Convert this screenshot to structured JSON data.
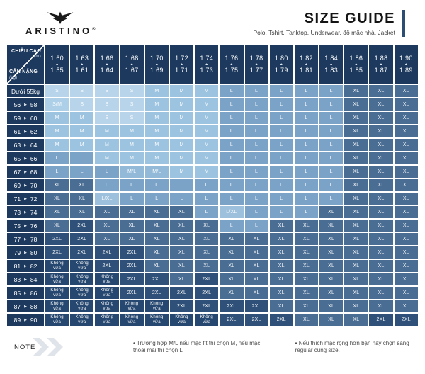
{
  "logo": {
    "brand": "ARISTINO",
    "reg": "®"
  },
  "header": {
    "title": "SIZE GUIDE",
    "subtitle": "Polo, Tshirt, Tanktop, Underwear, đồ mặc nhà, Jacket"
  },
  "chart_data": {
    "type": "table",
    "corner": {
      "top_label": "CHIỀU CAO",
      "top_unit": "(m)",
      "bottom_label": "CÂN NẶNG",
      "bottom_unit": "(kg)"
    },
    "col_arrow": "▲",
    "row_arrow": "▶",
    "no_fit_label": "Không vừa",
    "header_bg": "#1d3a5e",
    "size_colors": {
      "S": "#b7d4ea",
      "S/M": "#add0e8",
      "M": "#9cc3e0",
      "M/L": "#92b9d8",
      "L": "#7aa3c7",
      "L/XL": "#9dc0dc",
      "XL": "#4a6d94",
      "2XL": "#2f5179",
      "Không vừa": "#26476f"
    },
    "columns": [
      {
        "max": "1.60",
        "min": "1.55"
      },
      {
        "max": "1.63",
        "min": "1.61"
      },
      {
        "max": "1.66",
        "min": "1.64"
      },
      {
        "max": "1.68",
        "min": "1.67"
      },
      {
        "max": "1.70",
        "min": "1.69"
      },
      {
        "max": "1.72",
        "min": "1.71"
      },
      {
        "max": "1.74",
        "min": "1.73"
      },
      {
        "max": "1.76",
        "min": "1.75"
      },
      {
        "max": "1.78",
        "min": "1.77"
      },
      {
        "max": "1.80",
        "min": "1.79"
      },
      {
        "max": "1.82",
        "min": "1.81"
      },
      {
        "max": "1.84",
        "min": "1.83"
      },
      {
        "max": "1.86",
        "min": "1.85"
      },
      {
        "max": "1.88",
        "min": "1.87"
      },
      {
        "max": "1.90",
        "min": "1.89"
      }
    ],
    "rows": [
      {
        "label": "Dưới 55kg",
        "sizes": [
          "S",
          "S",
          "S",
          "S",
          "M",
          "M",
          "M",
          "L",
          "L",
          "L",
          "L",
          "L",
          "XL",
          "XL",
          "XL"
        ]
      },
      {
        "from": "56",
        "to": "58",
        "sizes": [
          "S/M",
          "S",
          "S",
          "S",
          "M",
          "M",
          "M",
          "L",
          "L",
          "L",
          "L",
          "L",
          "XL",
          "XL",
          "XL"
        ]
      },
      {
        "from": "59",
        "to": "60",
        "sizes": [
          "M",
          "M",
          "S",
          "S",
          "M",
          "M",
          "M",
          "L",
          "L",
          "L",
          "L",
          "L",
          "XL",
          "XL",
          "XL"
        ]
      },
      {
        "from": "61",
        "to": "62",
        "sizes": [
          "M",
          "M",
          "M",
          "M",
          "M",
          "M",
          "M",
          "L",
          "L",
          "L",
          "L",
          "L",
          "XL",
          "XL",
          "XL"
        ]
      },
      {
        "from": "63",
        "to": "64",
        "sizes": [
          "M",
          "M",
          "M",
          "M",
          "M",
          "M",
          "M",
          "L",
          "L",
          "L",
          "L",
          "L",
          "XL",
          "XL",
          "XL"
        ]
      },
      {
        "from": "65",
        "to": "66",
        "sizes": [
          "L",
          "L",
          "M",
          "M",
          "M",
          "M",
          "M",
          "L",
          "L",
          "L",
          "L",
          "L",
          "XL",
          "XL",
          "XL"
        ]
      },
      {
        "from": "67",
        "to": "68",
        "sizes": [
          "L",
          "L",
          "L",
          "M/L",
          "M/L",
          "M",
          "M",
          "L",
          "L",
          "L",
          "L",
          "L",
          "XL",
          "XL",
          "XL"
        ]
      },
      {
        "from": "69",
        "to": "70",
        "sizes": [
          "XL",
          "XL",
          "L",
          "L",
          "L",
          "L",
          "L",
          "L",
          "L",
          "L",
          "L",
          "L",
          "XL",
          "XL",
          "XL"
        ]
      },
      {
        "from": "71",
        "to": "72",
        "sizes": [
          "XL",
          "XL",
          "L/XL",
          "L",
          "L",
          "L",
          "L",
          "L",
          "L",
          "L",
          "L",
          "L",
          "XL",
          "XL",
          "XL"
        ]
      },
      {
        "from": "73",
        "to": "74",
        "sizes": [
          "XL",
          "XL",
          "XL",
          "XL",
          "XL",
          "XL",
          "L",
          "L/XL",
          "L",
          "L",
          "L",
          "XL",
          "XL",
          "XL",
          "XL"
        ]
      },
      {
        "from": "75",
        "to": "76",
        "sizes": [
          "XL",
          "2XL",
          "XL",
          "XL",
          "XL",
          "XL",
          "XL",
          "L",
          "L",
          "XL",
          "XL",
          "XL",
          "XL",
          "XL",
          "XL"
        ]
      },
      {
        "from": "77",
        "to": "78",
        "sizes": [
          "2XL",
          "2XL",
          "XL",
          "XL",
          "XL",
          "XL",
          "XL",
          "XL",
          "XL",
          "XL",
          "XL",
          "XL",
          "XL",
          "XL",
          "XL"
        ]
      },
      {
        "from": "79",
        "to": "80",
        "sizes": [
          "2XL",
          "2XL",
          "2XL",
          "2XL",
          "XL",
          "XL",
          "XL",
          "XL",
          "XL",
          "XL",
          "XL",
          "XL",
          "XL",
          "XL",
          "XL"
        ]
      },
      {
        "from": "81",
        "to": "82",
        "sizes": [
          "Không vừa",
          "Không vừa",
          "2XL",
          "2XL",
          "XL",
          "XL",
          "XL",
          "XL",
          "XL",
          "XL",
          "XL",
          "XL",
          "XL",
          "XL",
          "XL"
        ]
      },
      {
        "from": "83",
        "to": "84",
        "sizes": [
          "Không vừa",
          "Không vừa",
          "Không vừa",
          "2XL",
          "2XL",
          "XL",
          "2XL",
          "XL",
          "XL",
          "XL",
          "XL",
          "XL",
          "XL",
          "XL",
          "XL"
        ]
      },
      {
        "from": "85",
        "to": "86",
        "sizes": [
          "Không vừa",
          "Không vừa",
          "Không vừa",
          "2XL",
          "2XL",
          "2XL",
          "2XL",
          "XL",
          "XL",
          "XL",
          "XL",
          "XL",
          "XL",
          "XL",
          "XL"
        ]
      },
      {
        "from": "87",
        "to": "88",
        "sizes": [
          "Không vừa",
          "Không vừa",
          "Không vừa",
          "Không vừa",
          "Không vừa",
          "2XL",
          "2XL",
          "2XL",
          "2XL",
          "XL",
          "XL",
          "XL",
          "XL",
          "XL",
          "XL"
        ]
      },
      {
        "from": "89",
        "to": "90",
        "sizes": [
          "Không vừa",
          "Không vừa",
          "Không vừa",
          "Không vừa",
          "Không vừa",
          "Không vừa",
          "Không vừa",
          "2XL",
          "2XL",
          "2XL",
          "XL",
          "XL",
          "XL",
          "2XL",
          "2XL"
        ]
      }
    ]
  },
  "note": {
    "label": "NOTE",
    "items": [
      "Trường hợp M/L nếu mặc fit thì chọn M, nếu mặc thoải mái thì chọn L",
      "Nếu thích mặc rộng hơn bạn hãy chọn sang regular cùng size."
    ]
  }
}
